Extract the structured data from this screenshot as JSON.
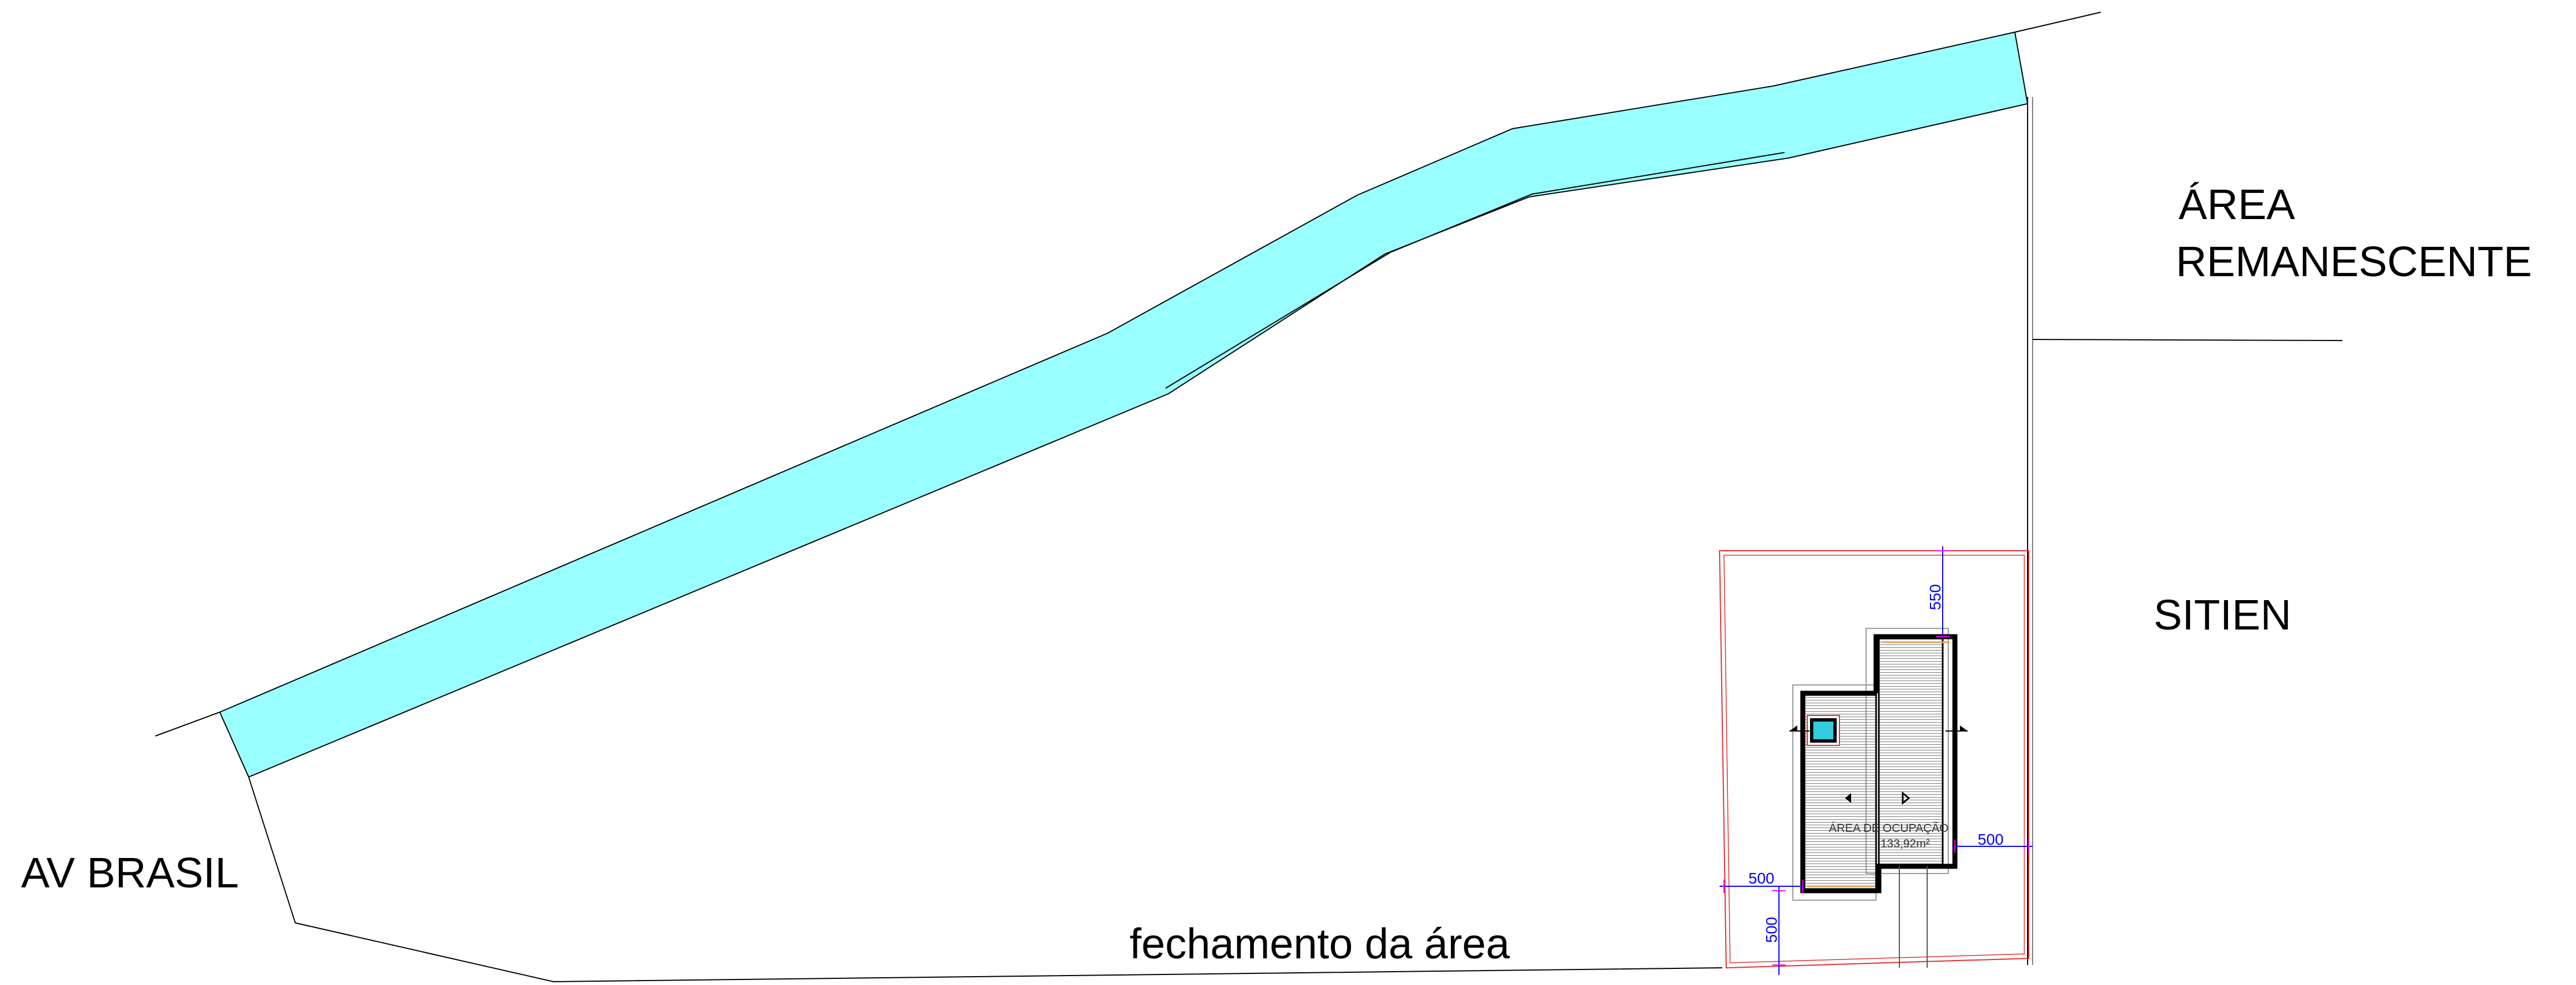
{
  "labels": {
    "street": "AV BRASIL",
    "remaining_line1": "ÁREA",
    "remaining_line2": "REMANESCENTE",
    "neighbor": "SITIEN",
    "closure": "fechamento da área"
  },
  "building": {
    "area_label": "ÁREA DE OCUPAÇÃO",
    "area_value": "133,92m²"
  },
  "dimensions": {
    "top_setback": "550",
    "right_setback": "500",
    "left_setback": "500",
    "bottom_setback": "500"
  },
  "colors": {
    "stream": "#99ffff",
    "setback_line": "#e03030",
    "dimension": "#0000ff",
    "dimension_tick": "#ff00ff",
    "wall": "#000000",
    "wall_finish": "#e0a060"
  }
}
